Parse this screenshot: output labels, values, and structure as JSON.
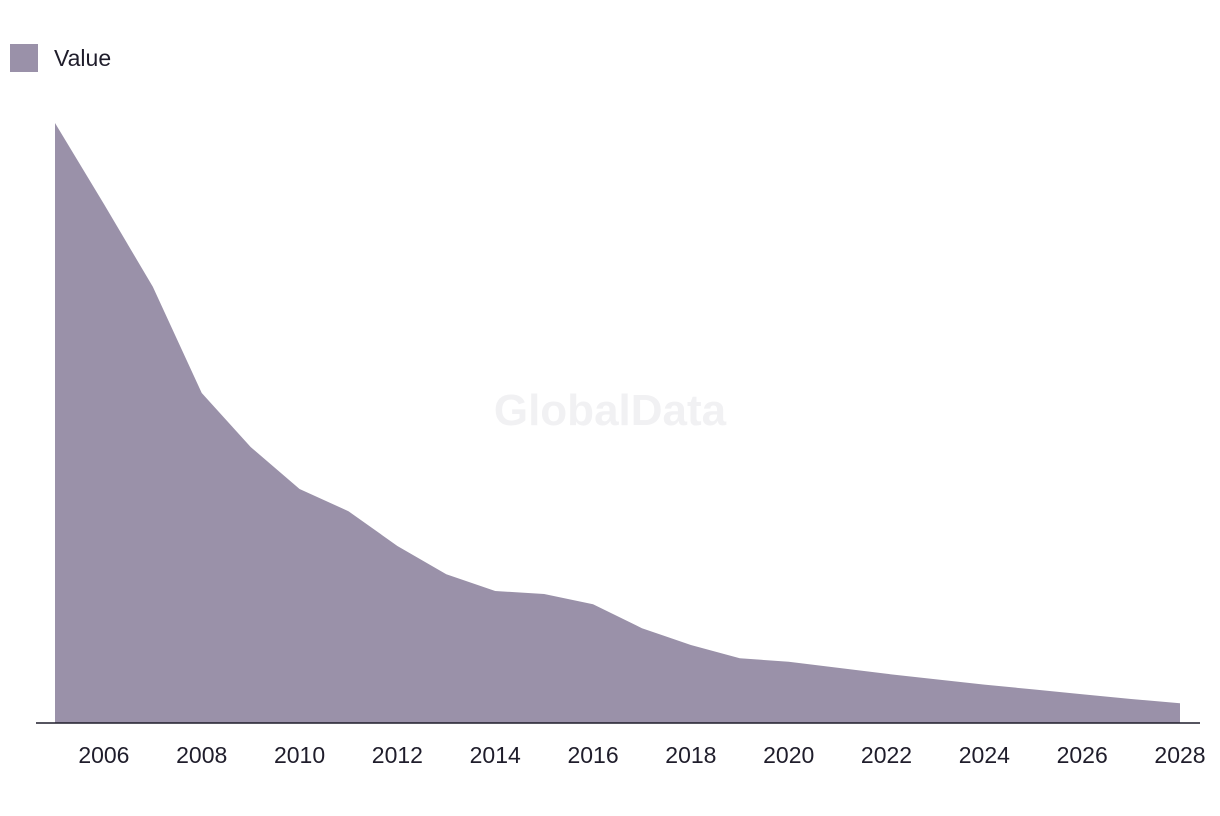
{
  "legend": {
    "label": "Value"
  },
  "watermark": "GlobalData",
  "colors": {
    "area": "#9a91a9",
    "axis": "#1f1d2b"
  },
  "chart_data": {
    "type": "area",
    "title": "",
    "xlabel": "",
    "ylabel": "",
    "series": [
      {
        "name": "Value",
        "x": [
          2005,
          2006,
          2007,
          2008,
          2009,
          2010,
          2011,
          2012,
          2013,
          2014,
          2015,
          2016,
          2017,
          2018,
          2019,
          2020,
          2021,
          2022,
          2023,
          2024,
          2025,
          2026,
          2027,
          2028
        ],
        "values": [
          100,
          86.5,
          72.7,
          55.0,
          46.0,
          39.0,
          35.3,
          29.5,
          24.8,
          22.0,
          21.5,
          19.8,
          15.8,
          13.0,
          10.8,
          10.2,
          9.2,
          8.2,
          7.3,
          6.4,
          5.6,
          4.8,
          4.0,
          3.3
        ]
      }
    ],
    "xticks": [
      "2006",
      "2008",
      "2010",
      "2012",
      "2014",
      "2016",
      "2018",
      "2020",
      "2022",
      "2024",
      "2026",
      "2028"
    ],
    "xlim": [
      2005,
      2028
    ],
    "ylim": [
      0,
      100
    ],
    "grid": false,
    "legend_position": "top-left"
  }
}
